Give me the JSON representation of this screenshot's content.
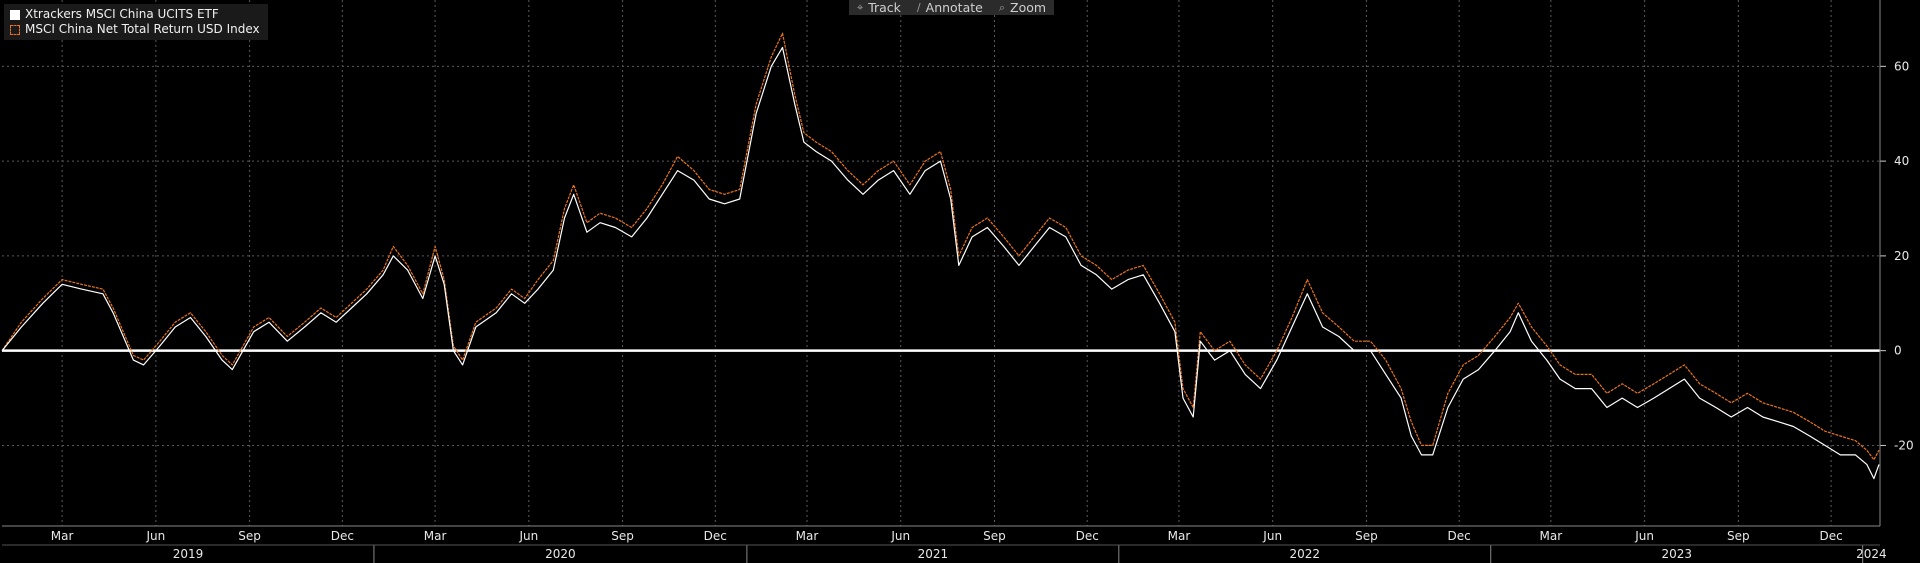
{
  "toolbar": {
    "track": {
      "label": "Track",
      "icon": "crosshair-icon"
    },
    "annotate": {
      "label": "Annotate",
      "icon": "pencil-icon"
    },
    "zoom": {
      "label": "Zoom",
      "icon": "magnifier-icon"
    }
  },
  "chart_data": {
    "type": "line",
    "title": "",
    "xlabel": "",
    "ylabel": "",
    "ylim": [
      -37,
      74
    ],
    "xlim": [
      "2019-01-01",
      "2024-01-18"
    ],
    "y_ticks": [
      "60",
      "40",
      "20",
      "0",
      "-20"
    ],
    "month_ticks": [
      "Mar",
      "Jun",
      "Sep",
      "Dec",
      "Mar",
      "Jun",
      "Sep",
      "Dec",
      "Mar",
      "Jun",
      "Sep",
      "Dec",
      "Mar",
      "Jun",
      "Sep",
      "Dec",
      "Mar",
      "Jun",
      "Sep",
      "Dec"
    ],
    "year_ticks": [
      "2019",
      "2020",
      "2021",
      "2022",
      "2023",
      "2024"
    ],
    "grid": true,
    "legend_position": "top-left",
    "baseline": 0,
    "colors": {
      "etf": "#ffffff",
      "index": "#e8731c",
      "grid": "#5a5a5a",
      "baseline": "#ffffff",
      "background": "#000000"
    },
    "series": [
      {
        "name": "Xtrackers MSCI China UCITS ETF",
        "x": [
          "2019-01-01",
          "2019-01-20",
          "2019-02-10",
          "2019-03-01",
          "2019-03-20",
          "2019-04-10",
          "2019-04-20",
          "2019-05-10",
          "2019-05-20",
          "2019-06-05",
          "2019-06-20",
          "2019-07-05",
          "2019-07-20",
          "2019-08-05",
          "2019-08-15",
          "2019-09-05",
          "2019-09-20",
          "2019-10-08",
          "2019-10-25",
          "2019-11-10",
          "2019-11-25",
          "2019-12-10",
          "2019-12-25",
          "2020-01-10",
          "2020-01-20",
          "2020-02-03",
          "2020-02-18",
          "2020-03-01",
          "2020-03-10",
          "2020-03-19",
          "2020-03-28",
          "2020-04-10",
          "2020-04-30",
          "2020-05-15",
          "2020-05-28",
          "2020-06-10",
          "2020-06-25",
          "2020-07-06",
          "2020-07-15",
          "2020-07-28",
          "2020-08-10",
          "2020-08-25",
          "2020-09-10",
          "2020-09-25",
          "2020-10-10",
          "2020-10-25",
          "2020-11-10",
          "2020-11-25",
          "2020-12-10",
          "2020-12-25",
          "2021-01-10",
          "2021-01-25",
          "2021-02-05",
          "2021-02-17",
          "2021-02-26",
          "2021-03-10",
          "2021-03-25",
          "2021-04-10",
          "2021-04-25",
          "2021-05-10",
          "2021-05-25",
          "2021-06-10",
          "2021-06-25",
          "2021-07-10",
          "2021-07-20",
          "2021-07-28",
          "2021-08-10",
          "2021-08-25",
          "2021-09-10",
          "2021-09-25",
          "2021-10-10",
          "2021-10-25",
          "2021-11-10",
          "2021-11-25",
          "2021-12-10",
          "2021-12-25",
          "2022-01-10",
          "2022-01-25",
          "2022-02-10",
          "2022-02-25",
          "2022-03-05",
          "2022-03-15",
          "2022-03-22",
          "2022-04-05",
          "2022-04-20",
          "2022-05-05",
          "2022-05-20",
          "2022-06-05",
          "2022-06-20",
          "2022-07-05",
          "2022-07-20",
          "2022-08-05",
          "2022-08-20",
          "2022-09-05",
          "2022-09-20",
          "2022-10-05",
          "2022-10-15",
          "2022-10-25",
          "2022-11-05",
          "2022-11-20",
          "2022-12-05",
          "2022-12-20",
          "2023-01-05",
          "2023-01-20",
          "2023-01-28",
          "2023-02-10",
          "2023-02-25",
          "2023-03-10",
          "2023-03-25",
          "2023-04-10",
          "2023-04-25",
          "2023-05-10",
          "2023-05-25",
          "2023-06-10",
          "2023-06-25",
          "2023-07-10",
          "2023-07-25",
          "2023-08-10",
          "2023-08-25",
          "2023-09-10",
          "2023-09-25",
          "2023-10-10",
          "2023-10-25",
          "2023-11-10",
          "2023-11-25",
          "2023-12-10",
          "2023-12-25",
          "2024-01-05",
          "2024-01-12",
          "2024-01-17"
        ],
        "y": [
          0,
          5,
          10,
          14,
          13,
          12,
          8,
          -2,
          -3,
          1,
          5,
          7,
          3,
          -2,
          -4,
          4,
          6,
          2,
          5,
          8,
          6,
          9,
          12,
          16,
          20,
          17,
          11,
          20,
          14,
          0,
          -3,
          5,
          8,
          12,
          10,
          13,
          17,
          28,
          33,
          25,
          27,
          26,
          24,
          28,
          33,
          38,
          36,
          32,
          31,
          32,
          50,
          60,
          64,
          52,
          44,
          42,
          40,
          36,
          33,
          36,
          38,
          33,
          38,
          40,
          32,
          18,
          24,
          26,
          22,
          18,
          22,
          26,
          24,
          18,
          16,
          13,
          15,
          16,
          10,
          4,
          -10,
          -14,
          2,
          -2,
          0,
          -5,
          -8,
          -2,
          5,
          12,
          5,
          3,
          0,
          0,
          -5,
          -10,
          -18,
          -22,
          -22,
          -12,
          -6,
          -4,
          0,
          4,
          8,
          2,
          -2,
          -6,
          -8,
          -8,
          -12,
          -10,
          -12,
          -10,
          -8,
          -6,
          -10,
          -12,
          -14,
          -12,
          -14,
          -15,
          -16,
          -18,
          -20,
          -22,
          -22,
          -24,
          -27,
          -24
        ]
      },
      {
        "name": "MSCI China Net Total Return USD Index",
        "x": [
          "2019-01-01",
          "2019-01-20",
          "2019-02-10",
          "2019-03-01",
          "2019-03-20",
          "2019-04-10",
          "2019-04-20",
          "2019-05-10",
          "2019-05-20",
          "2019-06-05",
          "2019-06-20",
          "2019-07-05",
          "2019-07-20",
          "2019-08-05",
          "2019-08-15",
          "2019-09-05",
          "2019-09-20",
          "2019-10-08",
          "2019-10-25",
          "2019-11-10",
          "2019-11-25",
          "2019-12-10",
          "2019-12-25",
          "2020-01-10",
          "2020-01-20",
          "2020-02-03",
          "2020-02-18",
          "2020-03-01",
          "2020-03-10",
          "2020-03-19",
          "2020-03-28",
          "2020-04-10",
          "2020-04-30",
          "2020-05-15",
          "2020-05-28",
          "2020-06-10",
          "2020-06-25",
          "2020-07-06",
          "2020-07-15",
          "2020-07-28",
          "2020-08-10",
          "2020-08-25",
          "2020-09-10",
          "2020-09-25",
          "2020-10-10",
          "2020-10-25",
          "2020-11-10",
          "2020-11-25",
          "2020-12-10",
          "2020-12-25",
          "2021-01-10",
          "2021-01-25",
          "2021-02-05",
          "2021-02-17",
          "2021-02-26",
          "2021-03-10",
          "2021-03-25",
          "2021-04-10",
          "2021-04-25",
          "2021-05-10",
          "2021-05-25",
          "2021-06-10",
          "2021-06-25",
          "2021-07-10",
          "2021-07-20",
          "2021-07-28",
          "2021-08-10",
          "2021-08-25",
          "2021-09-10",
          "2021-09-25",
          "2021-10-10",
          "2021-10-25",
          "2021-11-10",
          "2021-11-25",
          "2021-12-10",
          "2021-12-25",
          "2022-01-10",
          "2022-01-25",
          "2022-02-10",
          "2022-02-25",
          "2022-03-05",
          "2022-03-15",
          "2022-03-22",
          "2022-04-05",
          "2022-04-20",
          "2022-05-05",
          "2022-05-20",
          "2022-06-05",
          "2022-06-20",
          "2022-07-05",
          "2022-07-20",
          "2022-08-05",
          "2022-08-20",
          "2022-09-05",
          "2022-09-20",
          "2022-10-05",
          "2022-10-15",
          "2022-10-25",
          "2022-11-05",
          "2022-11-20",
          "2022-12-05",
          "2022-12-20",
          "2023-01-05",
          "2023-01-20",
          "2023-01-28",
          "2023-02-10",
          "2023-02-25",
          "2023-03-10",
          "2023-03-25",
          "2023-04-10",
          "2023-04-25",
          "2023-05-10",
          "2023-05-25",
          "2023-06-10",
          "2023-06-25",
          "2023-07-10",
          "2023-07-25",
          "2023-08-10",
          "2023-08-25",
          "2023-09-10",
          "2023-09-25",
          "2023-10-10",
          "2023-10-25",
          "2023-11-10",
          "2023-11-25",
          "2023-12-10",
          "2023-12-25",
          "2024-01-05",
          "2024-01-12",
          "2024-01-17"
        ],
        "y": [
          0,
          6,
          11,
          15,
          14,
          13,
          9,
          -1,
          -2,
          2,
          6,
          8,
          4,
          -1,
          -3,
          5,
          7,
          3,
          6,
          9,
          7,
          10,
          13,
          17,
          22,
          18,
          12,
          22,
          15,
          1,
          -2,
          6,
          9,
          13,
          11,
          15,
          19,
          30,
          35,
          27,
          29,
          28,
          26,
          30,
          35,
          41,
          38,
          34,
          33,
          34,
          52,
          62,
          67,
          54,
          46,
          44,
          42,
          38,
          35,
          38,
          40,
          35,
          40,
          42,
          34,
          20,
          26,
          28,
          24,
          20,
          24,
          28,
          26,
          20,
          18,
          15,
          17,
          18,
          12,
          6,
          -8,
          -12,
          4,
          0,
          2,
          -3,
          -6,
          0,
          7,
          15,
          8,
          5,
          2,
          2,
          -2,
          -8,
          -15,
          -20,
          -20,
          -9,
          -3,
          -1,
          3,
          7,
          10,
          5,
          1,
          -3,
          -5,
          -5,
          -9,
          -7,
          -9,
          -7,
          -5,
          -3,
          -7,
          -9,
          -11,
          -9,
          -11,
          -12,
          -13,
          -15,
          -17,
          -18,
          -19,
          -21,
          -23,
          -21
        ]
      }
    ]
  }
}
